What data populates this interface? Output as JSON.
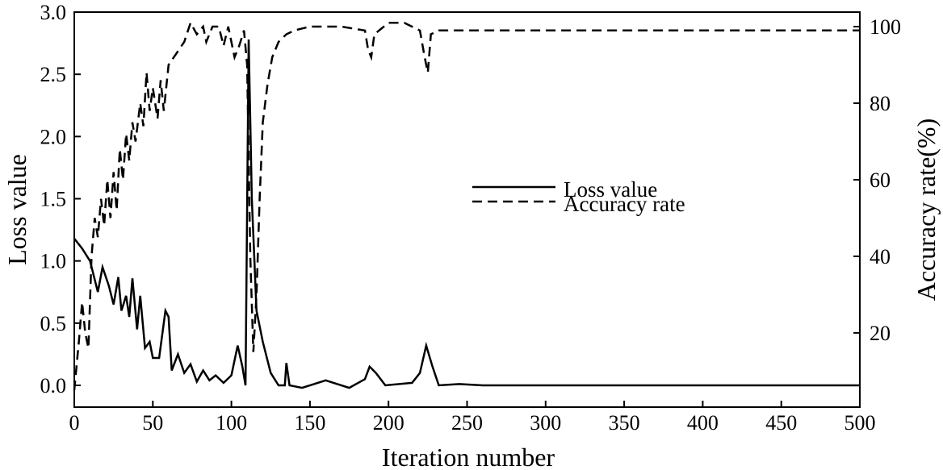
{
  "chart_data": {
    "type": "line",
    "x_label": "Iteration number",
    "y_label": "Loss value",
    "y2_label": "Accuracy rate(%)",
    "xlim": [
      0,
      500
    ],
    "xticks": [
      0,
      50,
      100,
      150,
      200,
      250,
      300,
      350,
      400,
      450,
      500
    ],
    "ylim": [
      -0.175,
      3.0
    ],
    "yticks": [
      {
        "value": 0,
        "label": "0.0"
      },
      0.5,
      {
        "value": 1,
        "label": "1.0"
      },
      1.5,
      {
        "value": 2,
        "label": "2.0"
      },
      2.5,
      {
        "value": 3,
        "label": "3.0"
      }
    ],
    "y2lim": [
      0.6,
      103.8
    ],
    "y2ticks": [
      20,
      40,
      60,
      80,
      100
    ],
    "series": [
      {
        "name": "Loss value",
        "color": "#000000",
        "line_style": "solid",
        "x": [
          0,
          5,
          10,
          15,
          18,
          22,
          25,
          28,
          30,
          33,
          35,
          37,
          40,
          42,
          45,
          48,
          50,
          54,
          58,
          60,
          62,
          66,
          70,
          74,
          78,
          82,
          86,
          90,
          95,
          100,
          104,
          107,
          109,
          111,
          113,
          116,
          120,
          125,
          130,
          134,
          135,
          137,
          145,
          160,
          175,
          185,
          188,
          192,
          198,
          215,
          220,
          224,
          228,
          232,
          245,
          260,
          500
        ],
        "values": [
          1.18,
          1.1,
          1.0,
          0.75,
          0.95,
          0.8,
          0.65,
          0.87,
          0.6,
          0.72,
          0.55,
          0.86,
          0.45,
          0.72,
          0.3,
          0.35,
          0.22,
          0.22,
          0.6,
          0.55,
          0.12,
          0.25,
          0.1,
          0.17,
          0.03,
          0.12,
          0.04,
          0.08,
          0.02,
          0.08,
          0.32,
          0.15,
          0.0,
          2.78,
          1.5,
          0.6,
          0.35,
          0.1,
          0.0,
          0.0,
          0.18,
          0.0,
          -0.02,
          0.04,
          -0.02,
          0.05,
          0.15,
          0.1,
          0.0,
          0.02,
          0.1,
          0.32,
          0.15,
          0.0,
          0.01,
          0,
          0
        ]
      },
      {
        "name": "Accuracy rate",
        "color": "#000000",
        "line_style": "dashed",
        "axis": "y2",
        "x": [
          0,
          3,
          5,
          7,
          9,
          11,
          13,
          15,
          17,
          19,
          21,
          23,
          25,
          27,
          29,
          31,
          33,
          35,
          37,
          39,
          42,
          44,
          46,
          48,
          50,
          53,
          55,
          57,
          60,
          65,
          70,
          74,
          78,
          82,
          84,
          88,
          92,
          95,
          98,
          100,
          102,
          105,
          108,
          110,
          112,
          114,
          116,
          118,
          120,
          123,
          126,
          130,
          135,
          140,
          150,
          170,
          185,
          187,
          189,
          191,
          200,
          210,
          220,
          223,
          225,
          227,
          232,
          500
        ],
        "values": [
          5,
          18,
          28,
          20,
          16,
          40,
          50,
          45,
          55,
          48,
          60,
          50,
          62,
          52,
          68,
          60,
          72,
          65,
          75,
          70,
          80,
          74,
          88,
          78,
          84,
          76,
          86,
          78,
          90,
          93,
          96,
          101,
          98,
          100,
          96,
          100,
          100,
          95,
          100,
          96,
          92,
          95,
          99,
          90,
          40,
          15,
          30,
          55,
          75,
          85,
          92,
          96,
          98,
          99,
          100,
          100,
          99,
          94,
          92,
          98,
          101,
          101,
          99,
          92,
          88,
          98,
          99,
          99
        ]
      }
    ]
  }
}
